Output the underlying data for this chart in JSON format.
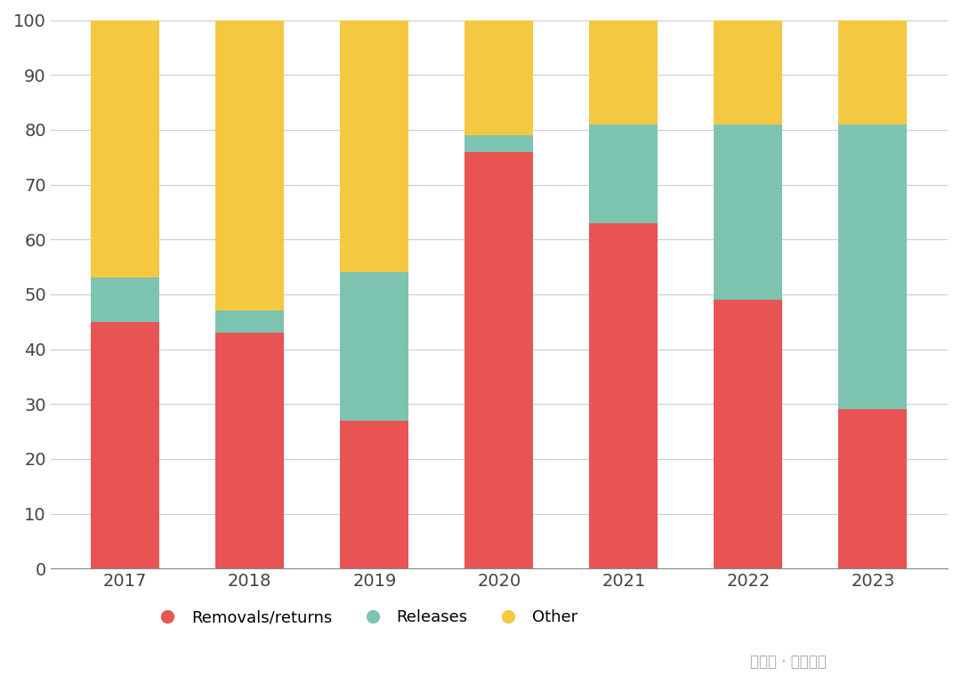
{
  "categories": [
    "2017",
    "2018",
    "2019",
    "2020",
    "2021",
    "2022",
    "2023"
  ],
  "removals": [
    45,
    43,
    27,
    76,
    63,
    49,
    29
  ],
  "releases": [
    8,
    4,
    27,
    3,
    18,
    32,
    52
  ],
  "other": [
    47,
    53,
    46,
    21,
    19,
    19,
    19
  ],
  "color_removals": "#e85454",
  "color_releases": "#7dc4b0",
  "color_other": "#f5c842",
  "background_color": "#ffffff",
  "grid_color": "#cccccc",
  "bar_width": 0.55,
  "ylim": [
    0,
    100
  ],
  "yticks": [
    0,
    10,
    20,
    30,
    40,
    50,
    60,
    70,
    80,
    90,
    100
  ],
  "legend_labels": [
    "Removals/returns",
    "Releases",
    "Other"
  ],
  "tick_fontsize": 14,
  "legend_fontsize": 13,
  "watermark": "公众号 · 底线思维"
}
